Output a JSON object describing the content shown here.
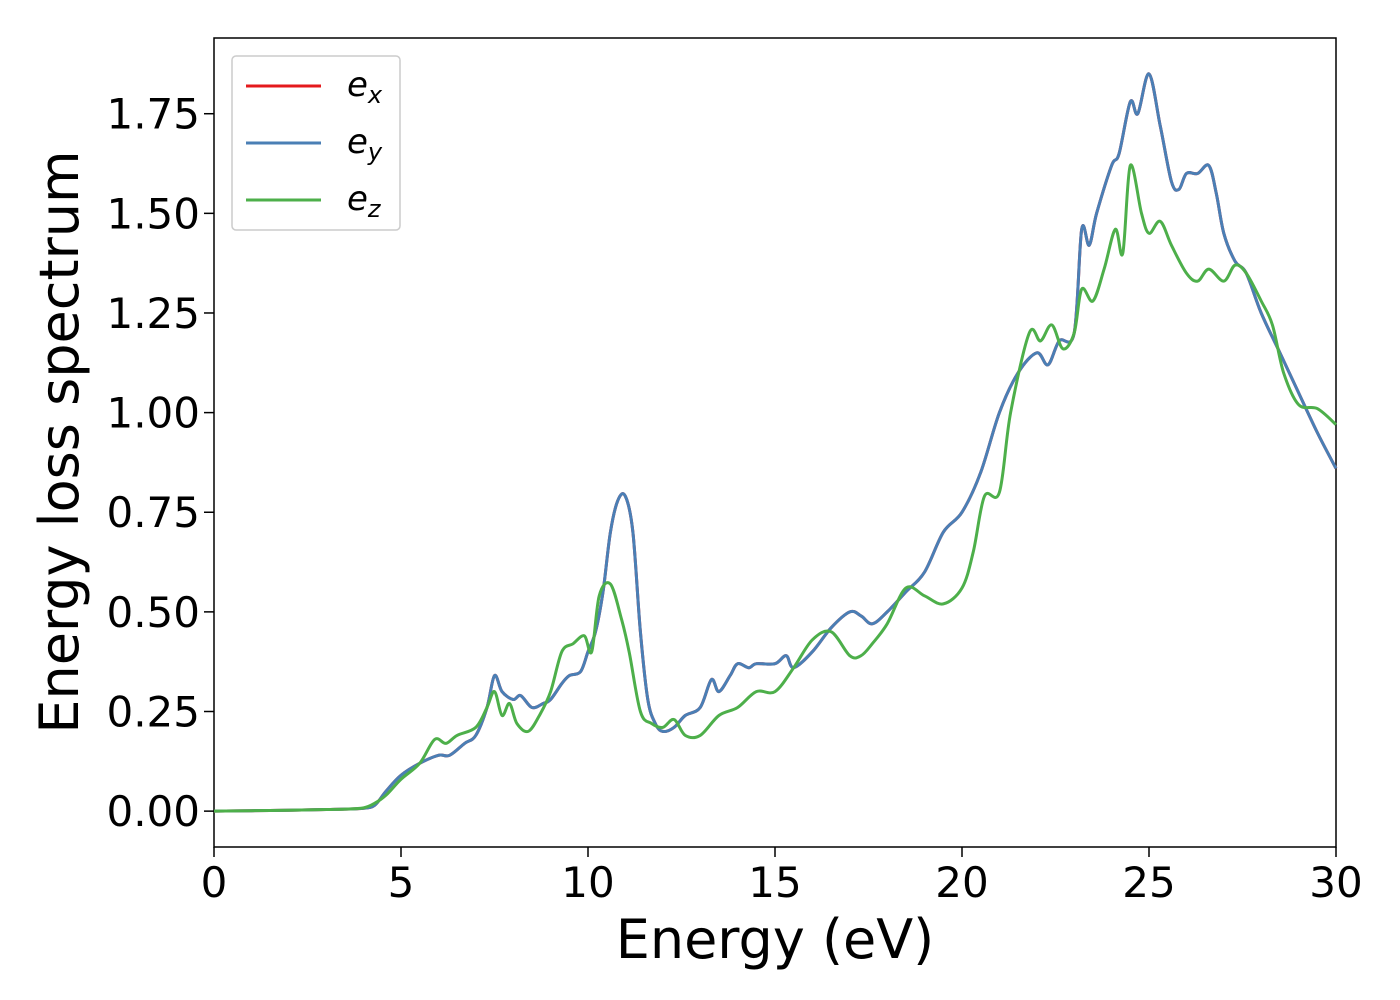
{
  "chart_data": {
    "type": "line",
    "xlabel": "Energy (eV)",
    "ylabel": "Energy loss spectrum",
    "xlim": [
      0,
      30
    ],
    "ylim": [
      -0.09,
      1.94
    ],
    "xticks": [
      "0",
      "5",
      "10",
      "15",
      "20",
      "25",
      "30"
    ],
    "yticks": [
      "0.00",
      "0.25",
      "0.50",
      "0.75",
      "1.00",
      "1.25",
      "1.50",
      "1.75"
    ],
    "grid": false,
    "legend_position": "top-left",
    "series": [
      {
        "name": "e_x",
        "base": "e",
        "sub": "x",
        "color": "#e41a1c",
        "x": [
          0,
          1,
          2,
          3,
          3.5,
          4,
          4.3,
          4.6,
          5,
          5.5,
          6,
          6.3,
          6.7,
          7,
          7.3,
          7.5,
          7.7,
          8,
          8.2,
          8.5,
          8.8,
          9,
          9.3,
          9.5,
          9.8,
          10,
          10.2,
          10.4,
          10.6,
          10.8,
          11,
          11.2,
          11.4,
          11.6,
          11.8,
          12,
          12.3,
          12.6,
          13,
          13.3,
          13.5,
          13.8,
          14,
          14.3,
          14.5,
          15,
          15.3,
          15.5,
          16,
          16.5,
          17,
          17.3,
          17.6,
          18,
          18.5,
          19,
          19.5,
          20,
          20.5,
          21,
          21.5,
          22,
          22.3,
          22.6,
          23,
          23.2,
          23.4,
          23.6,
          24,
          24.2,
          24.5,
          24.7,
          25,
          25.3,
          25.6,
          25.8,
          26,
          26.3,
          26.6,
          26.8,
          27,
          27.3,
          27.6,
          28,
          28.5,
          29,
          29.5,
          30
        ],
        "y": [
          0,
          0.001,
          0.002,
          0.004,
          0.005,
          0.007,
          0.015,
          0.05,
          0.09,
          0.12,
          0.14,
          0.14,
          0.17,
          0.19,
          0.26,
          0.34,
          0.3,
          0.28,
          0.29,
          0.26,
          0.27,
          0.28,
          0.32,
          0.34,
          0.35,
          0.4,
          0.45,
          0.55,
          0.7,
          0.78,
          0.79,
          0.7,
          0.45,
          0.28,
          0.22,
          0.2,
          0.21,
          0.24,
          0.26,
          0.33,
          0.3,
          0.34,
          0.37,
          0.36,
          0.37,
          0.37,
          0.39,
          0.36,
          0.4,
          0.46,
          0.5,
          0.49,
          0.47,
          0.5,
          0.55,
          0.6,
          0.7,
          0.75,
          0.85,
          1.0,
          1.1,
          1.15,
          1.12,
          1.18,
          1.2,
          1.46,
          1.42,
          1.5,
          1.62,
          1.65,
          1.78,
          1.75,
          1.85,
          1.72,
          1.58,
          1.56,
          1.6,
          1.6,
          1.62,
          1.55,
          1.45,
          1.38,
          1.35,
          1.25,
          1.15,
          1.05,
          0.95,
          0.86
        ]
      },
      {
        "name": "e_y",
        "base": "e",
        "sub": "y",
        "color": "#4a7fb5",
        "x": [
          0,
          1,
          2,
          3,
          3.5,
          4,
          4.3,
          4.6,
          5,
          5.5,
          6,
          6.3,
          6.7,
          7,
          7.3,
          7.5,
          7.7,
          8,
          8.2,
          8.5,
          8.8,
          9,
          9.3,
          9.5,
          9.8,
          10,
          10.2,
          10.4,
          10.6,
          10.8,
          11,
          11.2,
          11.4,
          11.6,
          11.8,
          12,
          12.3,
          12.6,
          13,
          13.3,
          13.5,
          13.8,
          14,
          14.3,
          14.5,
          15,
          15.3,
          15.5,
          16,
          16.5,
          17,
          17.3,
          17.6,
          18,
          18.5,
          19,
          19.5,
          20,
          20.5,
          21,
          21.5,
          22,
          22.3,
          22.6,
          23,
          23.2,
          23.4,
          23.6,
          24,
          24.2,
          24.5,
          24.7,
          25,
          25.3,
          25.6,
          25.8,
          26,
          26.3,
          26.6,
          26.8,
          27,
          27.3,
          27.6,
          28,
          28.5,
          29,
          29.5,
          30
        ],
        "y": [
          0,
          0.001,
          0.002,
          0.004,
          0.005,
          0.007,
          0.015,
          0.05,
          0.09,
          0.12,
          0.14,
          0.14,
          0.17,
          0.19,
          0.26,
          0.34,
          0.3,
          0.28,
          0.29,
          0.26,
          0.27,
          0.28,
          0.32,
          0.34,
          0.35,
          0.4,
          0.45,
          0.55,
          0.7,
          0.78,
          0.79,
          0.7,
          0.45,
          0.28,
          0.22,
          0.2,
          0.21,
          0.24,
          0.26,
          0.33,
          0.3,
          0.34,
          0.37,
          0.36,
          0.37,
          0.37,
          0.39,
          0.36,
          0.4,
          0.46,
          0.5,
          0.49,
          0.47,
          0.5,
          0.55,
          0.6,
          0.7,
          0.75,
          0.85,
          1.0,
          1.1,
          1.15,
          1.12,
          1.18,
          1.2,
          1.46,
          1.42,
          1.5,
          1.62,
          1.65,
          1.78,
          1.75,
          1.85,
          1.72,
          1.58,
          1.56,
          1.6,
          1.6,
          1.62,
          1.55,
          1.45,
          1.38,
          1.35,
          1.25,
          1.15,
          1.05,
          0.95,
          0.86
        ]
      },
      {
        "name": "e_z",
        "base": "e",
        "sub": "z",
        "color": "#4daf4a",
        "x": [
          0,
          1,
          2,
          3,
          3.5,
          4,
          4.3,
          4.6,
          5,
          5.5,
          5.9,
          6.2,
          6.5,
          7,
          7.3,
          7.5,
          7.7,
          7.9,
          8.1,
          8.4,
          8.7,
          9,
          9.3,
          9.6,
          9.9,
          10.1,
          10.3,
          10.6,
          10.9,
          11.1,
          11.4,
          11.7,
          12,
          12.3,
          12.6,
          13,
          13.5,
          14,
          14.5,
          15,
          15.5,
          16,
          16.5,
          17,
          17.3,
          17.6,
          18,
          18.5,
          19,
          19.5,
          20,
          20.3,
          20.6,
          21,
          21.3,
          21.8,
          22.1,
          22.4,
          22.7,
          23,
          23.2,
          23.5,
          23.8,
          24.1,
          24.3,
          24.5,
          24.8,
          25,
          25.3,
          25.6,
          26,
          26.3,
          26.6,
          27,
          27.3,
          27.6,
          28,
          28.3,
          28.6,
          29,
          29.5,
          30
        ],
        "y": [
          0,
          0.001,
          0.002,
          0.004,
          0.005,
          0.008,
          0.02,
          0.04,
          0.08,
          0.12,
          0.18,
          0.17,
          0.19,
          0.21,
          0.26,
          0.3,
          0.24,
          0.27,
          0.22,
          0.2,
          0.24,
          0.3,
          0.4,
          0.42,
          0.44,
          0.4,
          0.54,
          0.57,
          0.48,
          0.4,
          0.25,
          0.22,
          0.21,
          0.23,
          0.19,
          0.19,
          0.24,
          0.26,
          0.3,
          0.3,
          0.36,
          0.43,
          0.45,
          0.39,
          0.39,
          0.42,
          0.47,
          0.56,
          0.54,
          0.52,
          0.56,
          0.65,
          0.79,
          0.8,
          1.0,
          1.2,
          1.18,
          1.22,
          1.16,
          1.2,
          1.31,
          1.28,
          1.36,
          1.46,
          1.4,
          1.62,
          1.5,
          1.45,
          1.48,
          1.42,
          1.35,
          1.33,
          1.36,
          1.33,
          1.37,
          1.35,
          1.28,
          1.22,
          1.1,
          1.02,
          1.01,
          0.97
        ]
      }
    ]
  }
}
